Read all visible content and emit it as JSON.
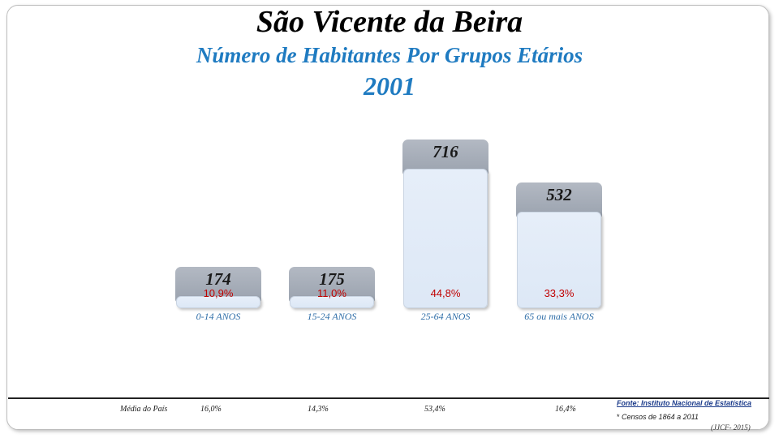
{
  "title": "São Vicente da Beira",
  "subtitle": "Número de Habitantes Por Grupos Etários",
  "year": "2001",
  "chart_data": {
    "type": "bar",
    "categories": [
      "0-14 ANOS",
      "15-24 ANOS",
      "25-64 ANOS",
      "65 ou mais ANOS"
    ],
    "values": [
      174,
      175,
      716,
      532
    ],
    "value_labels": [
      "174",
      "175",
      "716",
      "532"
    ],
    "percentages": [
      "10,9%",
      "11,0%",
      "44,8%",
      "33,3%"
    ],
    "ylim": [
      0,
      716
    ],
    "grid": false,
    "colors": {
      "bar": "#dde8f6",
      "cap": "#a3aab5",
      "percent": "#c00000",
      "category": "#2f6ea8"
    }
  },
  "national_average": {
    "label": "Média do País",
    "values": [
      "16,0%",
      "14,3%",
      "53,4%",
      "16,4%"
    ]
  },
  "source": "Fonte: Instituto Nacional de Estatística",
  "censos": {
    "star": "*",
    "text": "Censos de 1864 a 2011"
  },
  "credit": "(JJCF- 2015)"
}
